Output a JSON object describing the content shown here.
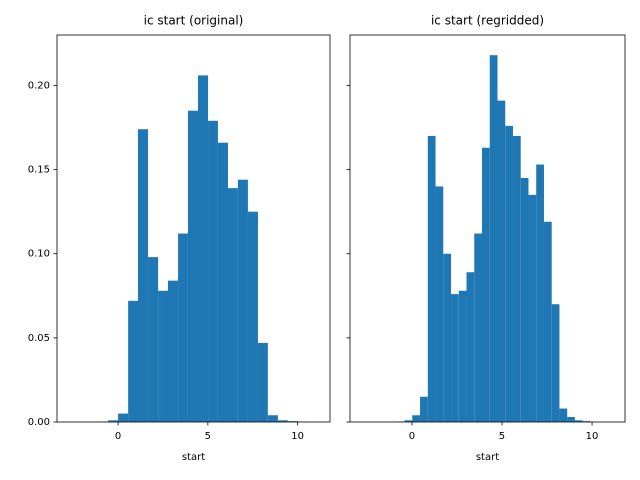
{
  "chart_data": [
    {
      "type": "histogram",
      "title": "ic start (original)",
      "x_label": "start",
      "color": "#1f77b4",
      "bins": [
        -1.11,
        -0.55,
        0.0,
        0.56,
        1.11,
        1.67,
        2.23,
        2.78,
        3.34,
        3.89,
        4.45,
        5.01,
        5.56,
        6.12,
        6.67,
        7.23,
        7.79,
        8.34,
        8.9,
        9.45,
        10.01,
        10.57
      ],
      "values": [
        0.0003,
        0.001,
        0.005,
        0.072,
        0.174,
        0.098,
        0.078,
        0.084,
        0.112,
        0.185,
        0.206,
        0.179,
        0.166,
        0.139,
        0.144,
        0.125,
        0.047,
        0.004,
        0.001,
        0.0005,
        0.0002
      ],
      "xlim": [
        -3.4,
        11.8
      ],
      "xticks": [
        0,
        5,
        10
      ],
      "ylim": [
        0,
        0.23
      ],
      "yticks": [
        {
          "value": 0,
          "label": "0.00"
        },
        {
          "value": 0.05,
          "label": "0.05"
        },
        {
          "value": 0.1,
          "label": "0.10"
        },
        {
          "value": 0.15,
          "label": "0.15"
        },
        {
          "value": 0.2,
          "label": "0.20"
        }
      ]
    },
    {
      "type": "histogram",
      "title": "ic start (regridded)",
      "x_label": "start",
      "color": "#1f77b4",
      "sharey": true,
      "bins": [
        -0.84,
        -0.41,
        0.02,
        0.45,
        0.88,
        1.31,
        1.74,
        2.17,
        2.6,
        3.03,
        3.46,
        3.89,
        4.32,
        4.75,
        5.18,
        5.61,
        6.04,
        6.47,
        6.9,
        7.33,
        7.76,
        8.19,
        8.62,
        9.05,
        9.48,
        9.91,
        10.34
      ],
      "values": [
        0.0003,
        0.001,
        0.004,
        0.015,
        0.17,
        0.14,
        0.1,
        0.076,
        0.078,
        0.089,
        0.112,
        0.163,
        0.218,
        0.191,
        0.176,
        0.17,
        0.145,
        0.135,
        0.153,
        0.119,
        0.07,
        0.008,
        0.003,
        0.001,
        0.0005,
        0.0002
      ],
      "xlim": [
        -3.44,
        11.83
      ],
      "xticks": [
        0,
        5,
        10
      ]
    }
  ]
}
